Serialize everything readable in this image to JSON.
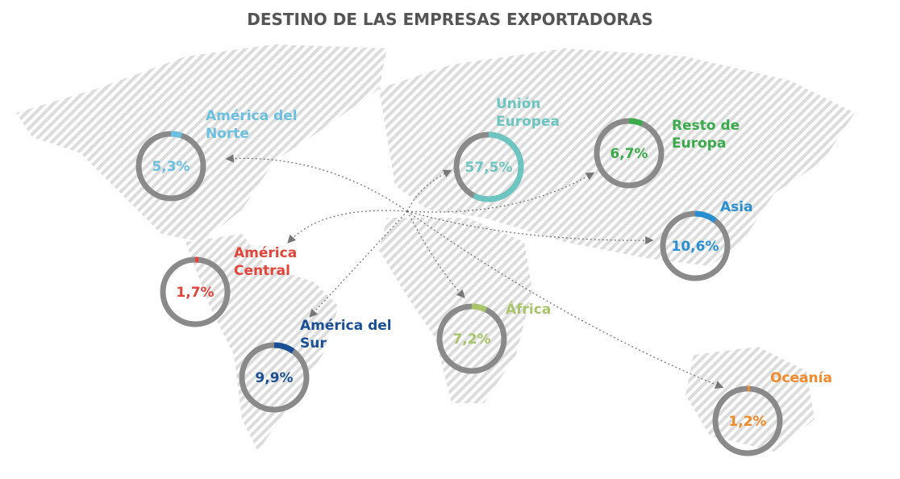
{
  "chart_data": {
    "type": "gauge",
    "title": "DESTINO DE LAS EMPRESAS EXPORTADORAS",
    "ring_color": "#8a8a8a",
    "series": [
      {
        "name": "América del Norte",
        "color": "#6bbfe0",
        "value": 5.3,
        "value_label": "5,3%"
      },
      {
        "name": "Unión Europea",
        "color": "#6cc5c0",
        "value": 57.5,
        "value_label": "57,5%"
      },
      {
        "name": "Resto de Europa",
        "color": "#3aaa4a",
        "value": 6.7,
        "value_label": "6,7%"
      },
      {
        "name": "Asia",
        "color": "#2a8fd0",
        "value": 10.6,
        "value_label": "10,6%"
      },
      {
        "name": "América Central",
        "color": "#e0443a",
        "value": 1.7,
        "value_label": "1,7%"
      },
      {
        "name": "América del Sur",
        "color": "#1a4f96",
        "value": 9.9,
        "value_label": "9,9%"
      },
      {
        "name": "África",
        "color": "#a8c56a",
        "value": 7.2,
        "value_label": "7,2%"
      },
      {
        "name": "Oceanía",
        "color": "#f08a2a",
        "value": 1.2,
        "value_label": "1,2%"
      }
    ]
  }
}
